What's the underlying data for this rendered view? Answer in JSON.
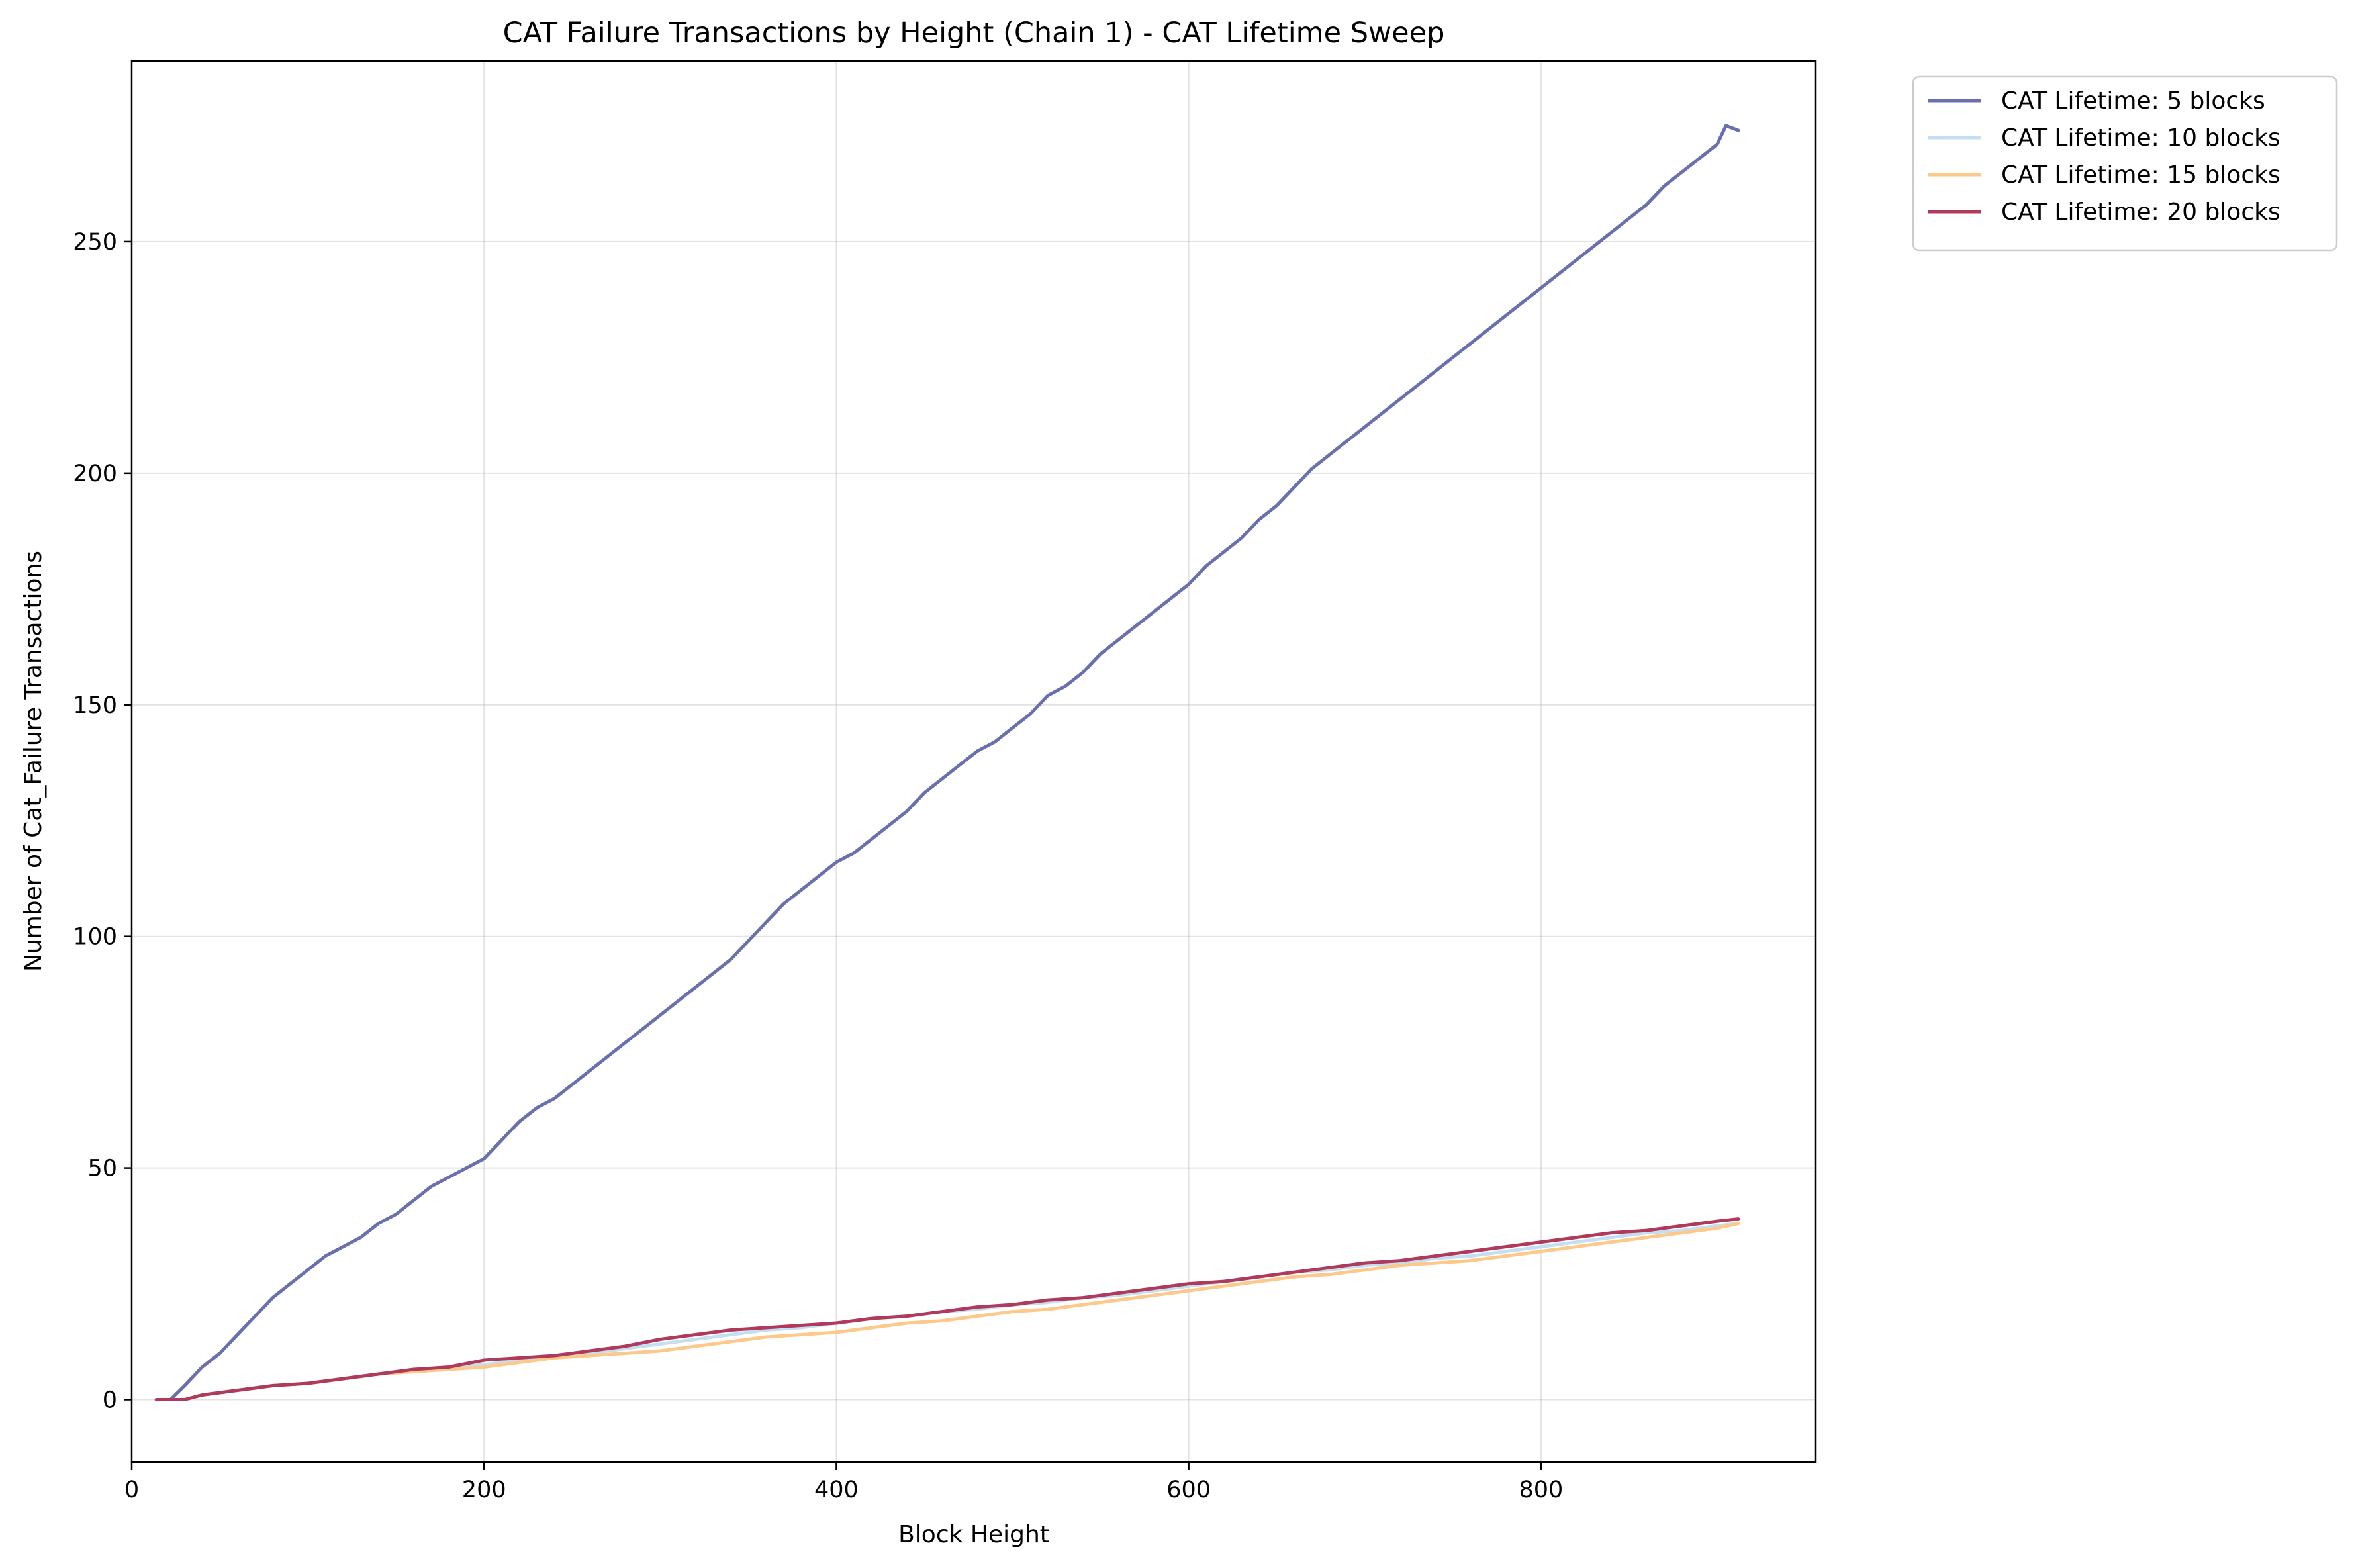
{
  "chart_data": {
    "type": "line",
    "title": "CAT Failure Transactions by Height (Chain 1) - CAT Lifetime Sweep",
    "xlabel": "Block Height",
    "ylabel": "Number of Cat_Failure Transactions",
    "xlim": [
      0,
      956
    ],
    "ylim": [
      -13.5,
      289
    ],
    "xticks": [
      0,
      200,
      400,
      600,
      800
    ],
    "yticks": [
      0,
      50,
      100,
      150,
      200,
      250
    ],
    "grid": true,
    "legend": "outside-top-right",
    "series": [
      {
        "name": "CAT Lifetime: 5 blocks",
        "color": "#6a6fae",
        "x": [
          14,
          22,
          30,
          40,
          50,
          60,
          70,
          80,
          90,
          100,
          110,
          120,
          130,
          140,
          150,
          160,
          170,
          180,
          190,
          200,
          210,
          220,
          230,
          240,
          250,
          260,
          270,
          280,
          290,
          300,
          310,
          320,
          330,
          340,
          350,
          360,
          370,
          380,
          390,
          400,
          410,
          420,
          430,
          440,
          450,
          460,
          470,
          480,
          490,
          500,
          510,
          520,
          530,
          540,
          550,
          560,
          570,
          580,
          590,
          600,
          610,
          620,
          630,
          640,
          650,
          660,
          670,
          680,
          690,
          700,
          710,
          720,
          730,
          740,
          750,
          760,
          770,
          780,
          790,
          800,
          810,
          820,
          830,
          840,
          850,
          860,
          870,
          880,
          890,
          900,
          905,
          912
        ],
        "y": [
          0,
          0,
          3,
          7,
          10,
          14,
          18,
          22,
          25,
          28,
          31,
          33,
          35,
          38,
          40,
          43,
          46,
          48,
          50,
          52,
          56,
          60,
          63,
          65,
          68,
          71,
          74,
          77,
          80,
          83,
          86,
          89,
          92,
          95,
          99,
          103,
          107,
          110,
          113,
          116,
          118,
          121,
          124,
          127,
          131,
          134,
          137,
          140,
          142,
          145,
          148,
          152,
          154,
          157,
          161,
          164,
          167,
          170,
          173,
          176,
          180,
          183,
          186,
          190,
          193,
          197,
          201,
          204,
          207,
          210,
          213,
          216,
          219,
          222,
          225,
          228,
          231,
          234,
          237,
          240,
          243,
          246,
          249,
          252,
          255,
          258,
          262,
          265,
          268,
          271,
          275,
          274
        ]
      },
      {
        "name": "CAT Lifetime: 10 blocks",
        "color": "#c4dff0",
        "x": [
          14,
          30,
          40,
          60,
          80,
          100,
          120,
          140,
          160,
          180,
          200,
          220,
          240,
          260,
          280,
          300,
          320,
          340,
          360,
          380,
          400,
          420,
          440,
          460,
          480,
          500,
          520,
          540,
          560,
          580,
          600,
          620,
          640,
          660,
          680,
          700,
          720,
          740,
          760,
          780,
          800,
          820,
          840,
          860,
          880,
          900,
          912
        ],
        "y": [
          0,
          0,
          1,
          2,
          3,
          3.5,
          4.5,
          5.5,
          6,
          7,
          7.5,
          8.5,
          9.5,
          10,
          11,
          12,
          13,
          14,
          15,
          15.5,
          16.5,
          17.5,
          18,
          19,
          19.5,
          20.5,
          21,
          22,
          22.5,
          23.5,
          24.5,
          25.5,
          26.5,
          27.5,
          28,
          29,
          29.5,
          30.5,
          31,
          32,
          33,
          34,
          35,
          36,
          36.5,
          37.5,
          38
        ]
      },
      {
        "name": "CAT Lifetime: 15 blocks",
        "color": "#fdc98b",
        "x": [
          14,
          30,
          40,
          60,
          80,
          100,
          120,
          140,
          160,
          180,
          200,
          220,
          240,
          260,
          280,
          300,
          320,
          340,
          360,
          380,
          400,
          420,
          440,
          460,
          480,
          500,
          520,
          540,
          560,
          580,
          600,
          620,
          640,
          660,
          680,
          700,
          720,
          740,
          760,
          780,
          800,
          820,
          840,
          860,
          880,
          900,
          912
        ],
        "y": [
          0,
          0,
          1,
          2,
          3,
          3.5,
          4.5,
          5.5,
          6,
          6.5,
          7,
          8,
          9,
          9.5,
          10,
          10.5,
          11.5,
          12.5,
          13.5,
          14,
          14.5,
          15.5,
          16.5,
          17,
          18,
          19,
          19.5,
          20.5,
          21.5,
          22.5,
          23.5,
          24.5,
          25.5,
          26.5,
          27,
          28,
          29,
          29.5,
          30,
          31,
          32,
          33,
          34,
          35,
          36,
          37,
          38
        ]
      },
      {
        "name": "CAT Lifetime: 20 blocks",
        "color": "#b03a5b",
        "x": [
          14,
          30,
          40,
          60,
          80,
          100,
          120,
          140,
          160,
          180,
          200,
          220,
          240,
          260,
          280,
          300,
          320,
          340,
          360,
          380,
          400,
          420,
          440,
          460,
          480,
          500,
          520,
          540,
          560,
          580,
          600,
          620,
          640,
          660,
          680,
          700,
          720,
          740,
          760,
          780,
          800,
          820,
          840,
          860,
          880,
          900,
          912
        ],
        "y": [
          0,
          0,
          1,
          2,
          3,
          3.5,
          4.5,
          5.5,
          6.5,
          7,
          8.5,
          9,
          9.5,
          10.5,
          11.5,
          13,
          14,
          15,
          15.5,
          16,
          16.5,
          17.5,
          18,
          19,
          20,
          20.5,
          21.5,
          22,
          23,
          24,
          25,
          25.5,
          26.5,
          27.5,
          28.5,
          29.5,
          30,
          31,
          32,
          33,
          34,
          35,
          36,
          36.5,
          37.5,
          38.5,
          39
        ]
      }
    ]
  }
}
